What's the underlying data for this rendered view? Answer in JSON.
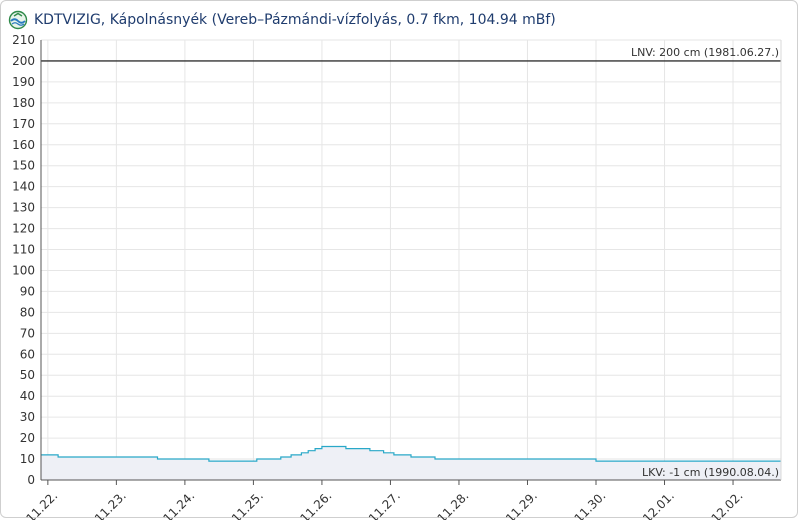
{
  "header": {
    "title": "KDTVIZIG, Kápolnásnyék (Vereb–Pázmándi-vízfolyás, 0.7 fkm, 104.94 mBf)",
    "logo_icon": "kdtvizig-logo-icon"
  },
  "chart_data": {
    "type": "area",
    "title": "KDTVIZIG, Kápolnásnyék (Vereb–Pázmándi-vízfolyás, 0.7 fkm, 104.94 mBf)",
    "xlabel": "",
    "ylabel": "",
    "ylim": [
      0,
      210
    ],
    "yticks": [
      0,
      10,
      20,
      30,
      40,
      50,
      60,
      70,
      80,
      90,
      100,
      110,
      120,
      130,
      140,
      150,
      160,
      170,
      180,
      190,
      200,
      210
    ],
    "xticks": [
      "11.22.",
      "11.23.",
      "11.24.",
      "11.25.",
      "11.26.",
      "11.27.",
      "11.28.",
      "11.29.",
      "11.30.",
      "12.01.",
      "12.02."
    ],
    "xlim": [
      -0.1,
      10.7
    ],
    "grid": true,
    "line_color": "#29a8c8",
    "fill_color": "#eef0f6",
    "reference_lines": [
      {
        "label": "LNV: 200 cm (1981.06.27.)",
        "value": 200,
        "color": "#444444"
      },
      {
        "label": "LKV: -1 cm (1990.08.04.)",
        "value": -1,
        "color": "#444444"
      }
    ],
    "series": [
      {
        "x": [
          -0.1,
          0.15,
          0.15,
          1.6,
          1.6,
          2.35,
          2.35,
          3.05,
          3.05,
          3.4,
          3.4,
          3.55,
          3.55,
          3.7,
          3.7,
          3.8,
          3.8,
          3.9,
          3.9,
          4.0,
          4.0,
          4.1,
          4.1,
          4.35,
          4.35,
          4.7,
          4.7,
          4.9,
          4.9,
          5.05,
          5.05,
          5.3,
          5.3,
          5.65,
          5.65,
          6.35,
          6.35,
          8.0,
          8.0,
          10.7
        ],
        "y": [
          12,
          12,
          11,
          11,
          10,
          10,
          9,
          9,
          10,
          10,
          11,
          11,
          12,
          12,
          13,
          13,
          14,
          14,
          15,
          15,
          16,
          16,
          16,
          16,
          15,
          15,
          14,
          14,
          13,
          13,
          12,
          12,
          11,
          11,
          10,
          10,
          10,
          10,
          9,
          9
        ]
      }
    ]
  }
}
